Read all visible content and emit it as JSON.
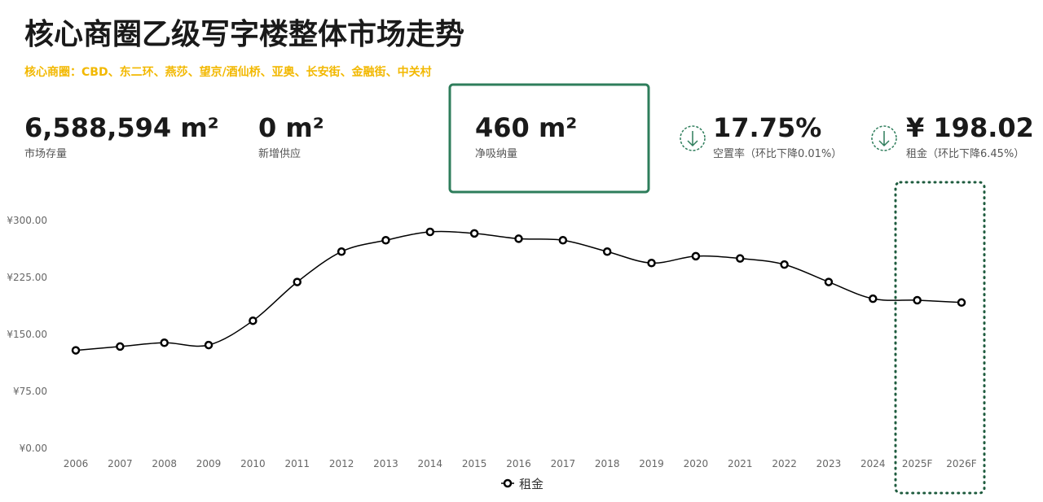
{
  "header": {
    "title": "核心商圈乙级写字楼整体市场走势",
    "subtitle": "核心商圈：CBD、东二环、燕莎、望京/酒仙桥、亚奥、长安街、金融街、中关村"
  },
  "kpis": [
    {
      "value": "6,588,594 m²",
      "label": "市场存量"
    },
    {
      "value": "0 m²",
      "label": "新增供应"
    },
    {
      "value": "460 m²",
      "label": "净吸纳量"
    },
    {
      "value": "17.75%",
      "label": "空置率（环比下降0.01%）"
    },
    {
      "value": "¥ 198.02",
      "label": "租金（环比下降6.45%）"
    }
  ],
  "chart_data": {
    "type": "line",
    "categories": [
      "2006",
      "2007",
      "2008",
      "2009",
      "2010",
      "2011",
      "2012",
      "2013",
      "2014",
      "2015",
      "2016",
      "2017",
      "2018",
      "2019",
      "2020",
      "2021",
      "2022",
      "2023",
      "2024",
      "2025F",
      "2026F"
    ],
    "series": [
      {
        "name": "租金",
        "color": "#000000",
        "values": [
          129,
          134,
          139,
          136,
          168,
          219,
          259,
          274,
          285,
          283,
          276,
          274,
          259,
          244,
          253,
          250,
          242,
          219,
          197,
          195,
          192
        ]
      }
    ],
    "ylim": [
      0,
      300
    ],
    "yticks": [
      {
        "value": 0,
        "label": "¥0.00"
      },
      {
        "value": 75,
        "label": "¥75.00"
      },
      {
        "value": 150,
        "label": "¥150.00"
      },
      {
        "value": 225,
        "label": "¥225.00"
      },
      {
        "value": 300,
        "label": "¥300.00"
      }
    ],
    "grid": false,
    "legend": "bottom"
  }
}
